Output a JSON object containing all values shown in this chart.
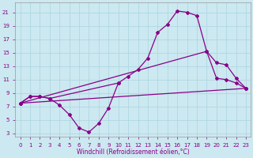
{
  "xlabel": "Windchill (Refroidissement éolien,°C)",
  "background_color": "#cce8f0",
  "line_color": "#880088",
  "grid_color": "#aad4e0",
  "xlim": [
    -0.5,
    23.5
  ],
  "ylim": [
    2.5,
    22.5
  ],
  "xticks": [
    0,
    1,
    2,
    3,
    4,
    5,
    6,
    7,
    8,
    9,
    10,
    11,
    12,
    13,
    14,
    15,
    16,
    17,
    18,
    19,
    20,
    21,
    22,
    23
  ],
  "yticks": [
    3,
    5,
    7,
    9,
    11,
    13,
    15,
    17,
    19,
    21
  ],
  "xlabel_fontsize": 5.5,
  "tick_fontsize": 5,
  "series": {
    "peak_curve": {
      "x": [
        0,
        1,
        2,
        3,
        10,
        11,
        12,
        13,
        14,
        15,
        16,
        17,
        18,
        19,
        20,
        21,
        22,
        23
      ],
      "y": [
        7.5,
        8.5,
        8.5,
        8.2,
        10.5,
        11.5,
        12.5,
        14.2,
        18.0,
        19.2,
        21.2,
        21.0,
        20.5,
        15.2,
        11.2,
        11.0,
        10.5,
        9.7
      ]
    },
    "dip_curve": {
      "x": [
        0,
        1,
        2,
        3,
        4,
        5,
        6,
        7,
        8,
        9,
        10
      ],
      "y": [
        7.5,
        8.5,
        8.5,
        8.2,
        7.2,
        5.8,
        3.8,
        3.2,
        4.5,
        6.8,
        10.5
      ]
    },
    "line_low": {
      "x": [
        0,
        23
      ],
      "y": [
        7.5,
        9.7
      ]
    },
    "line_high": {
      "x": [
        0,
        19,
        20,
        21,
        22,
        23
      ],
      "y": [
        7.5,
        15.2,
        13.5,
        13.2,
        11.2,
        9.7
      ]
    }
  }
}
